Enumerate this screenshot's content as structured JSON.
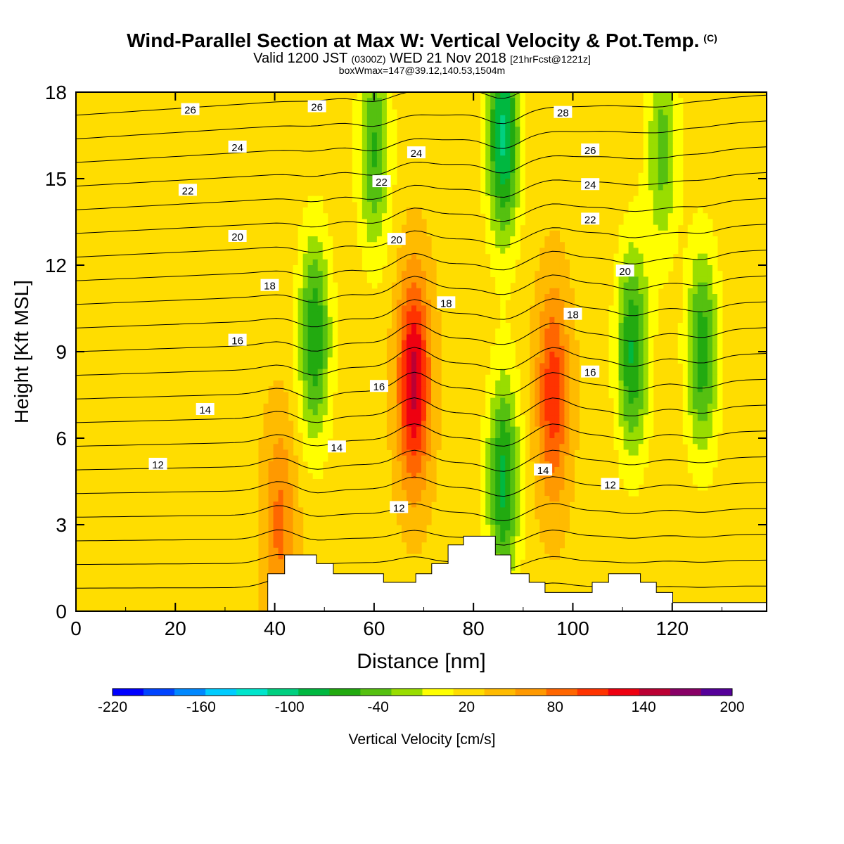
{
  "header": {
    "title": "Wind-Parallel Section at Max W: Vertical Velocity & Pot.Temp.",
    "copyright": "(C)",
    "subtitle_a": "Valid 1200 JST",
    "subtitle_b": "(0300Z)",
    "subtitle_c": "WED 21 Nov 2018",
    "subtitle_d": "[21hrFcst@1221z]",
    "subtitle2": "boxWmax=147@39.12,140.53,1504m"
  },
  "chart_data": {
    "type": "heatmap",
    "title": "Wind-Parallel Section at Max W: Vertical Velocity & Pot.Temp.",
    "xlabel": "Distance [nm]",
    "ylabel": "Height [Kft MSL]",
    "xlim": [
      0,
      139
    ],
    "ylim": [
      0,
      18
    ],
    "x_ticks": [
      "0",
      "20",
      "40",
      "60",
      "80",
      "100",
      "120"
    ],
    "y_ticks": [
      "0",
      "3",
      "6",
      "9",
      "12",
      "15",
      "18"
    ],
    "colorbar": {
      "label": "Vertical Velocity [cm/s]",
      "tick_labels": [
        "-220",
        "-160",
        "-100",
        "-40",
        "20",
        "80",
        "140",
        "200"
      ],
      "colors": [
        "#0000ff",
        "#0044ff",
        "#0088ff",
        "#00ccff",
        "#00e5cc",
        "#00d080",
        "#00b840",
        "#22aa10",
        "#55c010",
        "#99dd00",
        "#ffff00",
        "#ffdd00",
        "#ffbb00",
        "#ff9900",
        "#ff6600",
        "#ff3300",
        "#ee0011",
        "#bb0033",
        "#880066",
        "#550099"
      ]
    },
    "vertical_velocity_peaks": [
      {
        "x": 68,
        "y": 8.0,
        "w": 147
      },
      {
        "x": 96,
        "y": 7.5,
        "w": 110
      },
      {
        "x": 41,
        "y": 3.0,
        "w": 80
      },
      {
        "x": 86,
        "y": 16.5,
        "w": -100
      },
      {
        "x": 86,
        "y": 4.5,
        "w": -80
      },
      {
        "x": 48,
        "y": 9.5,
        "w": -70
      },
      {
        "x": 112,
        "y": 9.0,
        "w": -75
      },
      {
        "x": 126,
        "y": 9.0,
        "w": -65
      },
      {
        "x": 60,
        "y": 16.0,
        "w": -55
      },
      {
        "x": 118,
        "y": 16.0,
        "w": -40
      }
    ],
    "theta_contour_labels": [
      {
        "text": "26",
        "x": 23,
        "y": 17.4
      },
      {
        "text": "26",
        "x": 48.5,
        "y": 17.5
      },
      {
        "text": "28",
        "x": 98,
        "y": 17.3
      },
      {
        "text": "24",
        "x": 32.5,
        "y": 16.1
      },
      {
        "text": "24",
        "x": 68.5,
        "y": 15.9
      },
      {
        "text": "26",
        "x": 103.5,
        "y": 16.0
      },
      {
        "text": "22",
        "x": 22.5,
        "y": 14.6
      },
      {
        "text": "22",
        "x": 61.5,
        "y": 14.9
      },
      {
        "text": "24",
        "x": 103.5,
        "y": 14.8
      },
      {
        "text": "20",
        "x": 32.5,
        "y": 13.0
      },
      {
        "text": "20",
        "x": 64.5,
        "y": 12.9
      },
      {
        "text": "22",
        "x": 103.5,
        "y": 13.6
      },
      {
        "text": "18",
        "x": 39,
        "y": 11.3
      },
      {
        "text": "18",
        "x": 74.5,
        "y": 10.7
      },
      {
        "text": "20",
        "x": 110.5,
        "y": 11.8
      },
      {
        "text": "16",
        "x": 32.5,
        "y": 9.4
      },
      {
        "text": "16",
        "x": 61,
        "y": 7.8
      },
      {
        "text": "18",
        "x": 100,
        "y": 10.3
      },
      {
        "text": "16",
        "x": 103.5,
        "y": 8.3
      },
      {
        "text": "14",
        "x": 26,
        "y": 7.0
      },
      {
        "text": "14",
        "x": 52.5,
        "y": 5.7
      },
      {
        "text": "12",
        "x": 16.5,
        "y": 5.1
      },
      {
        "text": "12",
        "x": 65,
        "y": 3.6
      },
      {
        "text": "14",
        "x": 94,
        "y": 4.9
      },
      {
        "text": "12",
        "x": 107.5,
        "y": 4.4
      }
    ],
    "terrain_kft": [
      [
        0,
        0
      ],
      [
        38.6,
        0
      ],
      [
        38.6,
        1.3
      ],
      [
        42,
        1.3
      ],
      [
        42,
        1.95
      ],
      [
        48.4,
        1.95
      ],
      [
        48.4,
        1.65
      ],
      [
        51.8,
        1.65
      ],
      [
        51.8,
        1.3
      ],
      [
        61.9,
        1.3
      ],
      [
        61.9,
        1.0
      ],
      [
        68.4,
        1.0
      ],
      [
        68.4,
        1.3
      ],
      [
        71.6,
        1.3
      ],
      [
        71.6,
        1.65
      ],
      [
        74.9,
        1.65
      ],
      [
        74.9,
        2.3
      ],
      [
        78,
        2.3
      ],
      [
        78,
        2.6
      ],
      [
        84.4,
        2.6
      ],
      [
        84.4,
        1.95
      ],
      [
        87.5,
        1.95
      ],
      [
        87.5,
        1.3
      ],
      [
        91.2,
        1.3
      ],
      [
        91.2,
        1.0
      ],
      [
        94.4,
        1.0
      ],
      [
        94.4,
        0.65
      ],
      [
        103.9,
        0.65
      ],
      [
        103.9,
        1.0
      ],
      [
        107.2,
        1.0
      ],
      [
        107.2,
        1.3
      ],
      [
        113.6,
        1.3
      ],
      [
        113.6,
        1.0
      ],
      [
        116.8,
        1.0
      ],
      [
        116.8,
        0.65
      ],
      [
        120.1,
        0.65
      ],
      [
        120.1,
        0.3
      ],
      [
        139,
        0.3
      ],
      [
        139,
        0
      ]
    ]
  }
}
